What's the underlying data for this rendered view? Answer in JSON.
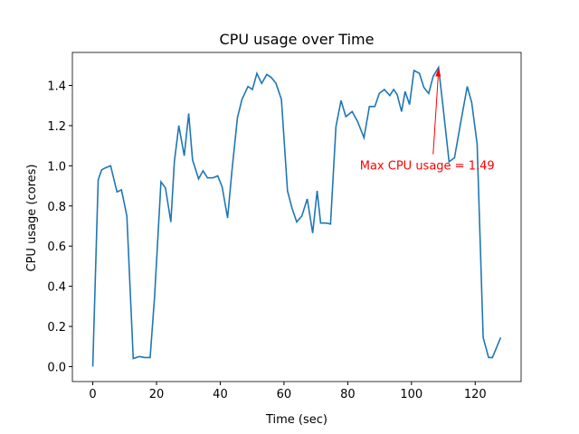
{
  "chart_data": {
    "type": "line",
    "title": "CPU usage over Time",
    "x_label": "Time (sec)",
    "y_label": "CPU usage (cores)",
    "color": "#1f77b4",
    "x": [
      0,
      1,
      1.7,
      2.8,
      4,
      5.6,
      7.6,
      9,
      10.7,
      12.7,
      14.6,
      16.3,
      18,
      19.4,
      21.4,
      22.8,
      24.5,
      25.6,
      27,
      28.7,
      30.1,
      31.3,
      33.2,
      34.6,
      36,
      37.7,
      39.2,
      40.6,
      42.3,
      43.7,
      45.4,
      46.8,
      48.7,
      50.1,
      51.5,
      53,
      54.6,
      56,
      57.5,
      59.2,
      61.1,
      62.5,
      64,
      65.6,
      67.3,
      69,
      70.4,
      71.5,
      73.2,
      74.6,
      76.3,
      77.9,
      79.4,
      81.4,
      83.1,
      85.1,
      86.8,
      88.5,
      89.9,
      91.5,
      93.2,
      94.4,
      95.5,
      96.9,
      98,
      99.4,
      100.8,
      102.5,
      103.9,
      105.4,
      106.8,
      108.5,
      109.9,
      111.8,
      113.5,
      115.5,
      117.5,
      118.9,
      120.6,
      122.5,
      124.2,
      125.4,
      128
    ],
    "values": [
      0.0,
      0.55,
      0.93,
      0.98,
      0.99,
      1.0,
      0.87,
      0.88,
      0.75,
      0.04,
      0.05,
      0.045,
      0.045,
      0.35,
      0.92,
      0.89,
      0.72,
      1.02,
      1.2,
      1.05,
      1.26,
      1.03,
      0.935,
      0.975,
      0.94,
      0.94,
      0.95,
      0.895,
      0.74,
      0.98,
      1.24,
      1.33,
      1.395,
      1.38,
      1.46,
      1.41,
      1.455,
      1.44,
      1.41,
      1.33,
      0.875,
      0.79,
      0.72,
      0.75,
      0.835,
      0.665,
      0.875,
      0.715,
      0.715,
      0.71,
      1.195,
      1.325,
      1.245,
      1.27,
      1.22,
      1.14,
      1.295,
      1.295,
      1.36,
      1.38,
      1.35,
      1.38,
      1.355,
      1.27,
      1.37,
      1.305,
      1.475,
      1.46,
      1.39,
      1.36,
      1.445,
      1.49,
      1.295,
      1.02,
      1.04,
      1.22,
      1.395,
      1.315,
      1.11,
      0.145,
      0.045,
      0.045,
      0.145
    ],
    "xlim": [
      -6.4,
      134.4
    ],
    "ylim": [
      -0.0745,
      1.5645
    ],
    "xticks": [
      0,
      20,
      40,
      60,
      80,
      100,
      120
    ],
    "yticks": [
      {
        "value": 0,
        "label": "0.0"
      },
      0.2,
      0.4,
      0.6,
      0.8,
      {
        "value": 1,
        "label": "1.0"
      },
      1.2,
      1.4
    ],
    "annotation": {
      "text": "Max CPU usage = 1.49",
      "x": 108.5,
      "y": 1.49,
      "color": "red"
    }
  }
}
